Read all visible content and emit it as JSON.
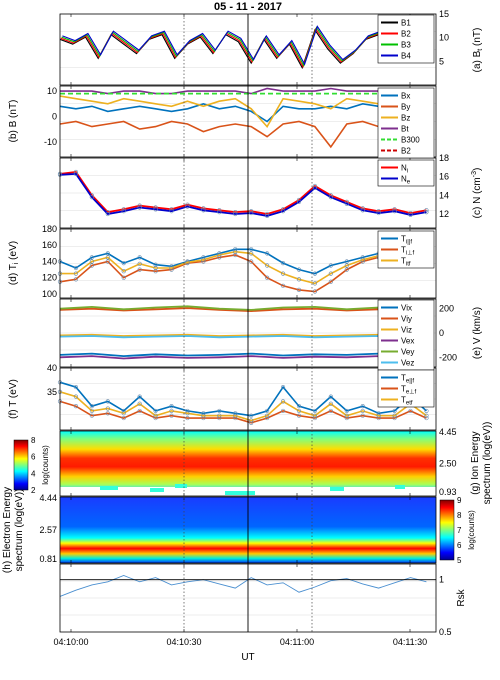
{
  "title": "05 - 11 - 2017",
  "xlabel": "UT",
  "x_ticks": [
    "04:10:00",
    "04:10:30",
    "04:11:00",
    "04:11:30"
  ],
  "panels": [
    {
      "id": "a",
      "tag": "(a)",
      "ylabel": "B",
      "ylabel_sub": "t",
      "ylabel_unit": "(nT)",
      "yticks_right": [
        5,
        10,
        15
      ],
      "ylim": [
        0,
        15
      ],
      "legend": [
        {
          "name": "B1",
          "color": "#000000"
        },
        {
          "name": "B2",
          "color": "#ff0000"
        },
        {
          "name": "B3",
          "color": "#00c000"
        },
        {
          "name": "B4",
          "color": "#0000cc"
        }
      ]
    },
    {
      "id": "b",
      "tag": "(b)",
      "ylabel": "B (nT)",
      "yticks_left": [
        -10,
        0,
        10
      ],
      "ylim": [
        -16,
        12
      ],
      "legend": [
        {
          "name": "Bx",
          "color": "#0072bd"
        },
        {
          "name": "By",
          "color": "#d95319"
        },
        {
          "name": "Bz",
          "color": "#edb120"
        },
        {
          "name": "Bt",
          "color": "#7e2f8e"
        },
        {
          "name": "B300",
          "color": "#33dd33",
          "dashed": true
        },
        {
          "name": "B2",
          "color": "#cc0000",
          "dashed": true
        }
      ]
    },
    {
      "id": "c",
      "tag": "(c)",
      "ylabel": "N (cm",
      "ylabel_sup": "-3",
      "ylabel_end": ")",
      "yticks_right": [
        12,
        14,
        16,
        18
      ],
      "ylim": [
        10.5,
        18
      ],
      "legend": [
        {
          "name": "N",
          "sub": "i",
          "color": "#ff0000"
        },
        {
          "name": "N",
          "sub": "e",
          "color": "#0000cc"
        }
      ]
    },
    {
      "id": "d",
      "tag": "(d)",
      "ylabel": "T",
      "ylabel_sub": "i",
      "ylabel_unit": "(eV)",
      "yticks_left": [
        100,
        120,
        140,
        160,
        180
      ],
      "ylim": [
        95,
        180
      ],
      "legend": [
        {
          "name": "T",
          "sub": "i||f",
          "color": "#0072bd"
        },
        {
          "name": "T",
          "sub": "i⊥f",
          "color": "#d95319"
        },
        {
          "name": "T",
          "sub": "itf",
          "color": "#edb120"
        }
      ]
    },
    {
      "id": "e",
      "tag": "(e)",
      "ylabel": "V (km/s)",
      "yticks_right": [
        -200,
        0,
        200
      ],
      "ylim": [
        -280,
        280
      ],
      "legend": [
        {
          "name": "Vix",
          "color": "#0072bd"
        },
        {
          "name": "Viy",
          "color": "#d95319"
        },
        {
          "name": "Viz",
          "color": "#edb120"
        },
        {
          "name": "Vex",
          "color": "#7e2f8e"
        },
        {
          "name": "Vey",
          "color": "#77ac30"
        },
        {
          "name": "Vez",
          "color": "#4dbeee"
        }
      ]
    },
    {
      "id": "f",
      "tag": "(f)",
      "ylabel": "T (eV)",
      "yticks_left": [
        35,
        40
      ],
      "ylim": [
        27,
        40
      ],
      "legend": [
        {
          "name": "T",
          "sub": "e||f",
          "color": "#0072bd"
        },
        {
          "name": "T",
          "sub": "e⊥f",
          "color": "#d95319"
        },
        {
          "name": "T",
          "sub": "etf",
          "color": "#edb120"
        }
      ]
    },
    {
      "id": "g",
      "tag": "(g)",
      "ylabel": "Ion Energy",
      "ylabel2": "spectrum (log(eV))",
      "yticks_right": [
        "4.45",
        "2.50",
        "0.93"
      ],
      "cbar": {
        "label": "log(counts)",
        "ticks": [
          2,
          4,
          6,
          8
        ],
        "side": "left"
      }
    },
    {
      "id": "h",
      "tag": "(h)",
      "ylabel": "Electron Energy",
      "ylabel2": "spectrum (log(eV))",
      "yticks_left": [
        "4.44",
        "2.57",
        "0.81"
      ],
      "cbar": {
        "label": "log(counts)",
        "ticks": [
          5,
          6,
          7,
          8,
          9
        ],
        "side": "right"
      }
    },
    {
      "id": "i",
      "ylabel": "Rsk",
      "yticks_right": [
        "0.5",
        "1"
      ],
      "ylim": [
        0.5,
        1.15
      ]
    }
  ],
  "chart_data": [
    {
      "type": "line",
      "x": [
        0,
        4,
        8,
        12,
        16,
        20,
        24,
        28,
        32,
        36,
        40,
        44,
        48,
        52,
        56,
        60,
        64,
        68,
        72,
        76,
        80,
        84,
        88,
        92,
        96,
        100,
        104,
        108,
        112,
        116
      ],
      "series": [
        {
          "name": "B4",
          "values": [
            10,
            9,
            10.5,
            6,
            11,
            9,
            7,
            10,
            11,
            6,
            9,
            10.5,
            7,
            11,
            9.5,
            5,
            10,
            6,
            9,
            4,
            12,
            8,
            5,
            7,
            10,
            11,
            7,
            10,
            8,
            10
          ]
        }
      ]
    },
    {
      "type": "line",
      "x": [
        0,
        5,
        10,
        15,
        20,
        25,
        30,
        35,
        40,
        45,
        50,
        55,
        60,
        65,
        70,
        75,
        80,
        85,
        90,
        95,
        100,
        105,
        110,
        115
      ],
      "series": [
        {
          "name": "Bx",
          "values": [
            4,
            3,
            4,
            2,
            3,
            4,
            3,
            2,
            3,
            5,
            3,
            4,
            2,
            -2,
            4,
            3,
            3,
            4,
            3,
            5,
            4,
            3,
            4,
            3
          ]
        },
        {
          "name": "By",
          "values": [
            -3,
            -2,
            -4,
            -3,
            -2,
            -5,
            -4,
            -2,
            -3,
            -6,
            -4,
            -3,
            -4,
            -8,
            -3,
            -2,
            -4,
            -12,
            -3,
            -2,
            -4,
            -3,
            -2,
            -3
          ]
        },
        {
          "name": "Bz",
          "values": [
            8,
            7,
            6,
            5,
            7,
            6,
            5,
            4,
            6,
            4,
            6,
            7,
            3,
            -4,
            7,
            6,
            5,
            3,
            7,
            6,
            5,
            6,
            7,
            6
          ]
        },
        {
          "name": "Bt",
          "values": [
            10,
            10,
            10,
            9,
            10,
            10,
            9,
            9,
            10,
            10,
            10,
            10,
            9,
            11,
            10,
            10,
            10,
            11,
            10,
            10,
            10,
            10,
            10,
            10
          ]
        },
        {
          "name": "B300",
          "values": [
            9,
            9,
            9,
            9,
            9,
            9,
            9,
            9,
            9,
            9,
            9,
            9,
            9,
            9,
            9,
            9,
            9,
            9,
            9,
            9,
            9,
            9,
            9,
            9
          ]
        }
      ]
    },
    {
      "type": "line",
      "x": [
        0,
        5,
        10,
        15,
        20,
        25,
        30,
        35,
        40,
        45,
        50,
        55,
        60,
        65,
        70,
        75,
        80,
        85,
        90,
        95,
        100,
        105,
        110,
        115
      ],
      "series": [
        {
          "name": "Ni",
          "values": [
            16.3,
            16.5,
            14,
            12.2,
            12.5,
            12.9,
            12.7,
            12.5,
            13,
            12.6,
            12.4,
            12.2,
            12.3,
            12,
            12.5,
            13.5,
            15,
            14,
            13.3,
            12.6,
            12.3,
            12.5,
            12.1,
            12.4
          ]
        },
        {
          "name": "Ne",
          "values": [
            16.2,
            16.3,
            13.8,
            12,
            12.3,
            12.7,
            12.5,
            12.3,
            12.8,
            12.4,
            12.2,
            12,
            12.1,
            11.8,
            12.3,
            13.3,
            14.8,
            13.8,
            13.1,
            12.4,
            12.1,
            12.3,
            11.9,
            12.2
          ]
        }
      ]
    },
    {
      "type": "line",
      "x": [
        0,
        5,
        10,
        15,
        20,
        25,
        30,
        35,
        40,
        45,
        50,
        55,
        60,
        65,
        70,
        75,
        80,
        85,
        90,
        95,
        100,
        105,
        110,
        115
      ],
      "series": [
        {
          "name": "Ti||f",
          "values": [
            140,
            132,
            145,
            150,
            138,
            145,
            136,
            134,
            140,
            145,
            150,
            155,
            155,
            150,
            138,
            130,
            125,
            135,
            140,
            145,
            150,
            152,
            150,
            155
          ]
        },
        {
          "name": "Ti⊥f",
          "values": [
            115,
            118,
            135,
            140,
            120,
            130,
            128,
            130,
            138,
            140,
            145,
            148,
            140,
            120,
            110,
            105,
            103,
            115,
            130,
            140,
            145,
            148,
            150,
            150
          ]
        },
        {
          "name": "Titf",
          "values": [
            125,
            125,
            140,
            145,
            128,
            137,
            132,
            132,
            139,
            142,
            148,
            152,
            150,
            135,
            125,
            118,
            113,
            125,
            135,
            142,
            147,
            150,
            150,
            152
          ]
        }
      ]
    },
    {
      "type": "line",
      "x": [
        0,
        10,
        20,
        30,
        40,
        50,
        60,
        70,
        80,
        90,
        100,
        110,
        115
      ],
      "series": [
        {
          "name": "Vix",
          "values": [
            -180,
            -170,
            -190,
            -175,
            -185,
            -180,
            -170,
            -185,
            -175,
            -180,
            -170,
            -175,
            -180
          ]
        },
        {
          "name": "Viy",
          "values": [
            190,
            200,
            185,
            195,
            205,
            190,
            180,
            195,
            200,
            185,
            195,
            190,
            188
          ]
        },
        {
          "name": "Viz",
          "values": [
            -20,
            -15,
            -25,
            -20,
            -15,
            -25,
            -20,
            -15,
            -25,
            -20,
            -15,
            -20,
            -22
          ]
        },
        {
          "name": "Vex",
          "values": [
            -200,
            -190,
            -210,
            -195,
            -205,
            -200,
            -190,
            -205,
            -195,
            -200,
            -190,
            -195,
            -200
          ]
        },
        {
          "name": "Vey",
          "values": [
            200,
            215,
            195,
            210,
            220,
            200,
            190,
            210,
            215,
            195,
            210,
            200,
            198
          ]
        },
        {
          "name": "Vez",
          "values": [
            -30,
            -25,
            -35,
            -30,
            -25,
            -35,
            -30,
            -25,
            -35,
            -30,
            -25,
            -30,
            -32
          ]
        }
      ]
    },
    {
      "type": "line",
      "x": [
        0,
        5,
        10,
        15,
        20,
        25,
        30,
        35,
        40,
        45,
        50,
        55,
        60,
        65,
        70,
        75,
        80,
        85,
        90,
        95,
        100,
        105,
        110,
        115
      ],
      "series": [
        {
          "name": "Te||f",
          "values": [
            37,
            36,
            32,
            33,
            31,
            34,
            31,
            32,
            31,
            30.5,
            31,
            30.5,
            30,
            31,
            36,
            32,
            31,
            34,
            31,
            32,
            30.5,
            31,
            34,
            31
          ]
        },
        {
          "name": "Te⊥f",
          "values": [
            33,
            32,
            30,
            30.5,
            29.5,
            31,
            29.5,
            30,
            29.5,
            29.5,
            29.5,
            29.5,
            28.5,
            29.5,
            31,
            30,
            29.5,
            31,
            29.5,
            30,
            29.5,
            29.5,
            31,
            29.5
          ]
        },
        {
          "name": "Tetf",
          "values": [
            35,
            34,
            31,
            31.5,
            30.5,
            32.5,
            30,
            31,
            30.5,
            30,
            30,
            30,
            29,
            30,
            33,
            31,
            30,
            32.5,
            30,
            31,
            30,
            30,
            32.5,
            30
          ]
        }
      ]
    },
    {
      "type": "line",
      "x": [
        0,
        5,
        10,
        15,
        20,
        25,
        30,
        35,
        40,
        45,
        50,
        55,
        60,
        65,
        70,
        75,
        80,
        85,
        90,
        95,
        100,
        105,
        110,
        115
      ],
      "series": [
        {
          "name": "Rsk",
          "values": [
            0.84,
            0.9,
            0.95,
            0.98,
            1.04,
            0.98,
            1.02,
            0.95,
            0.98,
            1,
            0.96,
            0.92,
            1.02,
            0.95,
            0.97,
            0.88,
            0.93,
            0.99,
            1.01,
            0.96,
            0.92,
            0.97,
            1.02,
            0.98
          ]
        }
      ]
    }
  ]
}
